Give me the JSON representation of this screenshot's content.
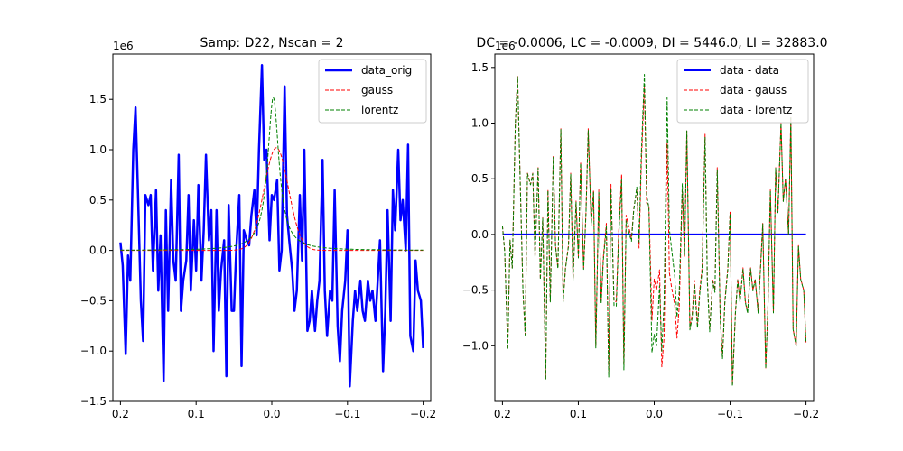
{
  "chart_data": [
    {
      "type": "line",
      "title": "Samp: D22, Nscan = 2",
      "xlabel": "",
      "ylabel": "",
      "y_multiplier_label": "1e6",
      "xlim": [
        0.21,
        -0.21
      ],
      "ylim": [
        -1.5,
        1.95
      ],
      "x_ticks": [
        0.2,
        0.1,
        0.0,
        -0.1,
        -0.2
      ],
      "x_tick_labels": [
        "0.2",
        "0.1",
        "0.0",
        "−0.1",
        "−0.2"
      ],
      "y_ticks": [
        -1.5,
        -1.0,
        -0.5,
        0.0,
        0.5,
        1.0,
        1.5
      ],
      "y_tick_labels": [
        "−1.5",
        "−1.0",
        "−0.5",
        "0.0",
        "0.5",
        "1.0",
        "1.5"
      ],
      "grid": false,
      "legend_position": "top-right",
      "series": [
        {
          "name": "data_orig",
          "color": "#0000ff",
          "style": "solid",
          "width": 2.5,
          "x": [
            0.2,
            0.197,
            0.193,
            0.19,
            0.187,
            0.183,
            0.18,
            0.177,
            0.173,
            0.17,
            0.167,
            0.163,
            0.16,
            0.157,
            0.153,
            0.15,
            0.147,
            0.143,
            0.14,
            0.137,
            0.133,
            0.13,
            0.127,
            0.123,
            0.12,
            0.117,
            0.113,
            0.11,
            0.107,
            0.103,
            0.1,
            0.097,
            0.093,
            0.09,
            0.087,
            0.083,
            0.08,
            0.077,
            0.073,
            0.07,
            0.067,
            0.063,
            0.06,
            0.057,
            0.053,
            0.05,
            0.047,
            0.043,
            0.04,
            0.037,
            0.033,
            0.03,
            0.027,
            0.023,
            0.02,
            0.017,
            0.013,
            0.01,
            0.007,
            0.003,
            0.0,
            -0.003,
            -0.007,
            -0.01,
            -0.013,
            -0.017,
            -0.02,
            -0.023,
            -0.027,
            -0.03,
            -0.033,
            -0.037,
            -0.04,
            -0.043,
            -0.047,
            -0.05,
            -0.053,
            -0.057,
            -0.06,
            -0.063,
            -0.067,
            -0.07,
            -0.073,
            -0.077,
            -0.08,
            -0.083,
            -0.087,
            -0.09,
            -0.093,
            -0.097,
            -0.1,
            -0.103,
            -0.107,
            -0.11,
            -0.113,
            -0.117,
            -0.12,
            -0.123,
            -0.127,
            -0.13,
            -0.133,
            -0.137,
            -0.14,
            -0.143,
            -0.147,
            -0.15,
            -0.153,
            -0.157,
            -0.16,
            -0.163,
            -0.167,
            -0.17,
            -0.173,
            -0.177,
            -0.18,
            -0.183,
            -0.187,
            -0.19,
            -0.193,
            -0.197,
            -0.2
          ],
          "y": [
            0.08,
            -0.15,
            -1.03,
            -0.05,
            -0.3,
            1.0,
            1.42,
            0.6,
            -0.5,
            -0.9,
            0.55,
            0.45,
            0.55,
            -0.2,
            0.6,
            -0.4,
            0.15,
            -1.3,
            0.4,
            -0.6,
            0.7,
            -0.1,
            -0.3,
            0.95,
            -0.6,
            -0.3,
            -0.1,
            0.55,
            -0.4,
            0.3,
            -0.2,
            0.65,
            -0.3,
            0.2,
            0.95,
            0.1,
            0.4,
            -1.0,
            0.4,
            -0.6,
            -0.2,
            0.1,
            -1.25,
            0.45,
            -0.6,
            -0.6,
            0.0,
            0.55,
            -1.15,
            0.2,
            0.1,
            0.05,
            0.35,
            0.6,
            0.15,
            1.0,
            1.84,
            0.9,
            1.0,
            0.1,
            0.55,
            0.5,
            0.7,
            -0.2,
            0.0,
            1.63,
            0.35,
            0.1,
            -0.2,
            -0.6,
            -0.4,
            0.55,
            -0.1,
            1.0,
            -0.8,
            -0.7,
            -0.4,
            -0.8,
            -0.5,
            -0.3,
            0.9,
            -0.4,
            -0.85,
            -0.4,
            -0.5,
            0.6,
            -0.75,
            -1.1,
            -0.6,
            -0.3,
            0.2,
            -1.35,
            -0.7,
            -0.4,
            -0.6,
            -0.3,
            -0.6,
            -0.7,
            -0.3,
            -0.5,
            -0.4,
            -0.7,
            -0.3,
            0.1,
            -1.2,
            -0.6,
            0.4,
            -0.7,
            0.6,
            0.2,
            1.0,
            0.3,
            0.5,
            0.0,
            1.05,
            -0.85,
            -1.0,
            -0.1,
            -0.4,
            -0.5,
            -0.97
          ]
        },
        {
          "name": "gauss",
          "color": "#ff0000",
          "style": "dashed",
          "width": 1,
          "gauss": {
            "amplitude": 1.02,
            "center": -0.006,
            "sigma": 0.016
          }
        },
        {
          "name": "lorentz",
          "color": "#008000",
          "style": "dashed",
          "width": 1,
          "lorentz": {
            "amplitude": 1.52,
            "center": -0.002,
            "gamma": 0.009
          }
        }
      ]
    },
    {
      "type": "line",
      "title": "DC = -0.0006, LC = -0.0009, DI = 5446.0, LI = 32883.0",
      "xlabel": "",
      "ylabel": "",
      "y_multiplier_label": "1e6",
      "xlim": [
        0.21,
        -0.21
      ],
      "ylim": [
        -1.5,
        1.62
      ],
      "x_ticks": [
        0.2,
        0.1,
        0.0,
        -0.1,
        -0.2
      ],
      "x_tick_labels": [
        "0.2",
        "0.1",
        "0.0",
        "−0.1",
        "−0.2"
      ],
      "y_ticks": [
        -1.0,
        -0.5,
        0.0,
        0.5,
        1.0,
        1.5
      ],
      "y_tick_labels": [
        "−1.0",
        "−0.5",
        "0.0",
        "0.5",
        "1.0",
        "1.5"
      ],
      "grid": false,
      "legend_position": "top-right",
      "series": [
        {
          "name": "data - data",
          "color": "#0000ff",
          "style": "solid",
          "width": 2,
          "x": [
            0.2,
            -0.2
          ],
          "y": [
            0,
            0
          ]
        },
        {
          "name": "data - gauss",
          "color": "#ff0000",
          "style": "dashed",
          "width": 1,
          "derived": "data_orig - gauss"
        },
        {
          "name": "data - lorentz",
          "color": "#008000",
          "style": "dashed",
          "width": 1,
          "derived": "data_orig - lorentz"
        }
      ]
    }
  ]
}
